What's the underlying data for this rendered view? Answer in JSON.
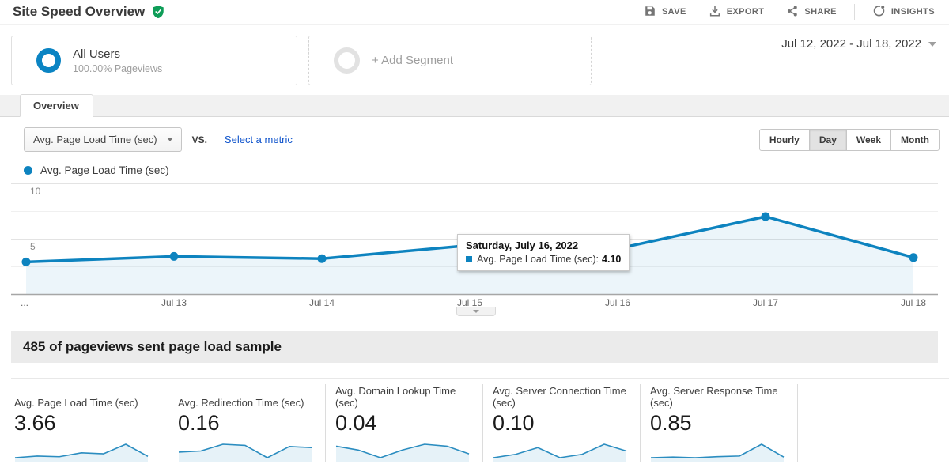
{
  "header": {
    "title": "Site Speed Overview",
    "verified_icon": "shield-check-icon",
    "actions": [
      {
        "label": "SAVE",
        "icon": "save-icon"
      },
      {
        "label": "EXPORT",
        "icon": "export-icon"
      },
      {
        "label": "SHARE",
        "icon": "share-icon"
      },
      {
        "label": "INSIGHTS",
        "icon": "insights-icon"
      }
    ]
  },
  "segments": {
    "active_segment": {
      "name": "All Users",
      "detail": "100.00% Pageviews"
    },
    "add_segment_label": "+ Add Segment",
    "date_range": "Jul 12, 2022 - Jul 18, 2022"
  },
  "tabs": [
    {
      "label": "Overview",
      "active": true
    }
  ],
  "toolbar": {
    "metric_selector": "Avg. Page Load Time (sec)",
    "vs_label": "vs.",
    "compare_link": "Select a metric",
    "granularity_options": [
      "Hourly",
      "Day",
      "Week",
      "Month"
    ],
    "granularity_selected": "Day"
  },
  "legend": {
    "series_label": "Avg. Page Load Time (sec)"
  },
  "chart_data": [
    {
      "id": "main",
      "type": "line",
      "title": "Avg. Page Load Time (sec)",
      "x": [
        "Jul 12",
        "Jul 13",
        "Jul 14",
        "Jul 15",
        "Jul 16",
        "Jul 17",
        "Jul 18"
      ],
      "x_tick_labels": [
        "...",
        "Jul 13",
        "Jul 14",
        "Jul 15",
        "Jul 16",
        "Jul 17",
        "Jul 18"
      ],
      "values": [
        2.9,
        3.4,
        3.2,
        4.4,
        4.1,
        7.0,
        3.3
      ],
      "ylim": [
        0,
        10
      ],
      "yticks": [
        10,
        5
      ],
      "gridlines": [
        10,
        7.5,
        5,
        2.5
      ],
      "grid": true,
      "legend_position": "top-left",
      "tooltip": {
        "title": "Saturday, July 16, 2022",
        "series_label": "Avg. Page Load Time (sec):",
        "value": "4.10",
        "x": "Jul 16"
      }
    },
    {
      "id": "spark-page-load",
      "type": "line",
      "title": "Avg. Page Load Time (sec)",
      "x": [
        "Jul 12",
        "Jul 13",
        "Jul 14",
        "Jul 15",
        "Jul 16",
        "Jul 17",
        "Jul 18"
      ],
      "values": [
        2.9,
        3.4,
        3.2,
        4.4,
        4.1,
        7.0,
        3.3
      ]
    },
    {
      "id": "spark-redirection",
      "type": "line",
      "title": "Avg. Redirection Time (sec)",
      "x": [
        "Jul 12",
        "Jul 13",
        "Jul 14",
        "Jul 15",
        "Jul 16",
        "Jul 17",
        "Jul 18"
      ],
      "values": [
        0.1,
        0.11,
        0.17,
        0.16,
        0.05,
        0.15,
        0.14
      ]
    },
    {
      "id": "spark-domain-lookup",
      "type": "line",
      "title": "Avg. Domain Lookup Time (sec)",
      "x": [
        "Jul 12",
        "Jul 13",
        "Jul 14",
        "Jul 15",
        "Jul 16",
        "Jul 17",
        "Jul 18"
      ],
      "values": [
        0.05,
        0.04,
        0.02,
        0.04,
        0.055,
        0.05,
        0.03
      ]
    },
    {
      "id": "spark-server-connection",
      "type": "line",
      "title": "Avg. Server Connection Time (sec)",
      "x": [
        "Jul 12",
        "Jul 13",
        "Jul 14",
        "Jul 15",
        "Jul 16",
        "Jul 17",
        "Jul 18"
      ],
      "values": [
        0.09,
        0.1,
        0.12,
        0.09,
        0.1,
        0.13,
        0.11
      ]
    },
    {
      "id": "spark-server-response",
      "type": "line",
      "title": "Avg. Server Response Time (sec)",
      "x": [
        "Jul 12",
        "Jul 13",
        "Jul 14",
        "Jul 15",
        "Jul 16",
        "Jul 17",
        "Jul 18"
      ],
      "values": [
        0.8,
        0.82,
        0.8,
        0.83,
        0.85,
        1.2,
        0.82
      ]
    }
  ],
  "sample_banner": "485 of pageviews sent page load sample",
  "metric_cards": [
    {
      "label": "Avg. Page Load Time (sec)",
      "value": "3.66",
      "chart_id": "spark-page-load"
    },
    {
      "label": "Avg. Redirection Time (sec)",
      "value": "0.16",
      "chart_id": "spark-redirection"
    },
    {
      "label": "Avg. Domain Lookup Time (sec)",
      "value": "0.04",
      "chart_id": "spark-domain-lookup"
    },
    {
      "label": "Avg. Server Connection Time (sec)",
      "value": "0.10",
      "chart_id": "spark-server-connection"
    },
    {
      "label": "Avg. Server Response Time (sec)",
      "value": "0.85",
      "chart_id": "spark-server-response"
    }
  ],
  "colors": {
    "accent_blue": "#0d83bf",
    "area_fill": "rgba(13,131,191,0.08)",
    "link_blue": "#1155cc",
    "badge_green": "#0f9d58"
  }
}
